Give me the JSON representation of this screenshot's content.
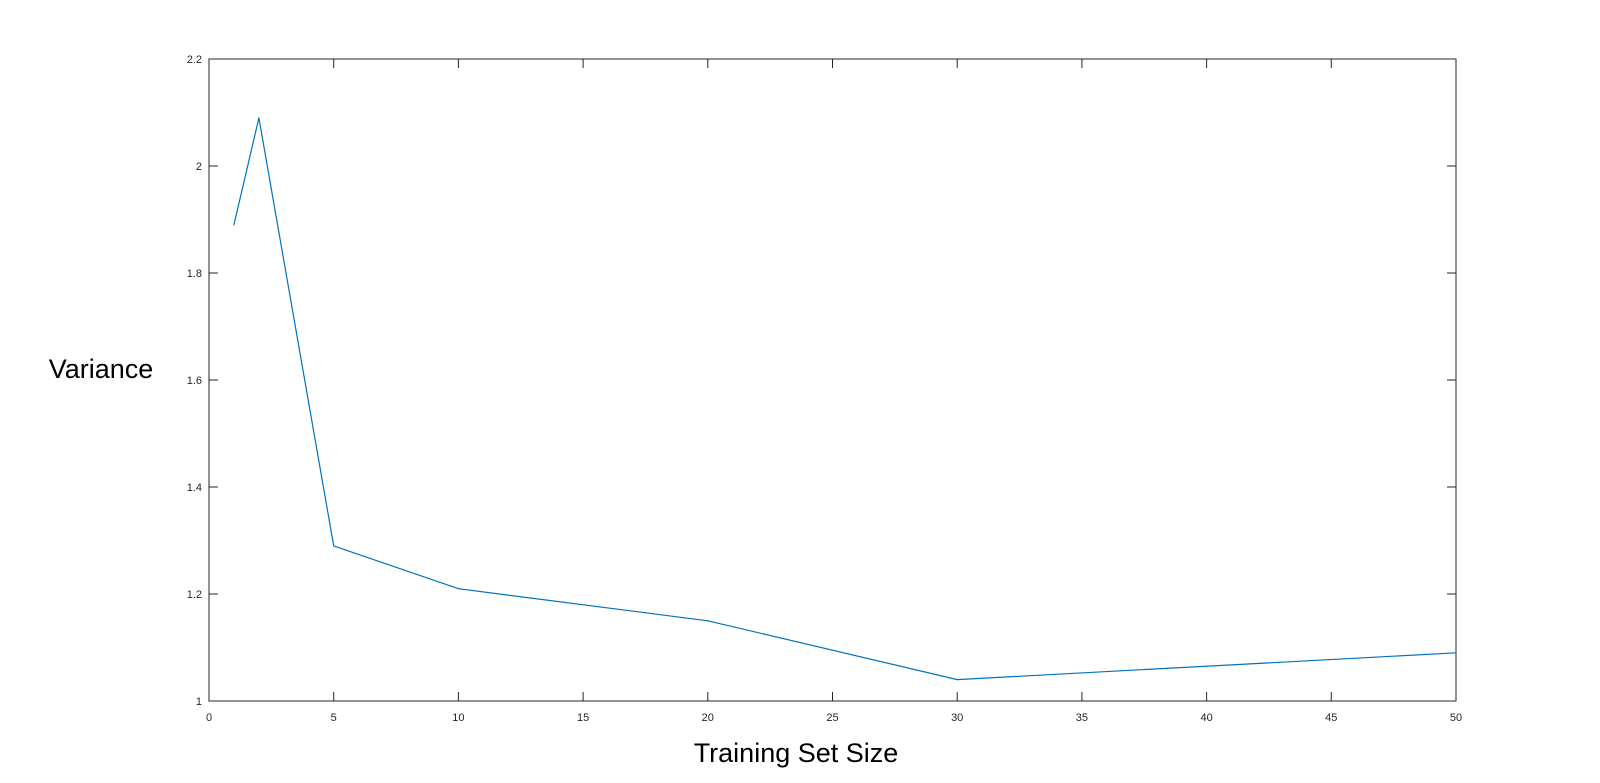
{
  "chart_data": {
    "type": "line",
    "title": "",
    "xlabel": "Training Set Size",
    "ylabel": "Variance",
    "xlim": [
      0,
      50
    ],
    "ylim": [
      1,
      2.2
    ],
    "x_ticks": [
      0,
      5,
      10,
      15,
      20,
      25,
      30,
      35,
      40,
      45,
      50
    ],
    "y_ticks": [
      1,
      1.2,
      1.4,
      1.6,
      1.8,
      2,
      2.2
    ],
    "x_tick_labels": [
      "0",
      "5",
      "10",
      "15",
      "20",
      "25",
      "30",
      "35",
      "40",
      "45",
      "50"
    ],
    "y_tick_labels": [
      "1",
      "1.2",
      "1.4",
      "1.6",
      "1.8",
      "2",
      "2.2"
    ],
    "grid": false,
    "box": true,
    "series": [
      {
        "x": [
          1,
          2,
          5,
          10,
          20,
          30,
          50
        ],
        "y": [
          1.89,
          2.09,
          1.29,
          1.21,
          1.15,
          1.04,
          1.09
        ],
        "color": "#0072BD"
      }
    ]
  }
}
